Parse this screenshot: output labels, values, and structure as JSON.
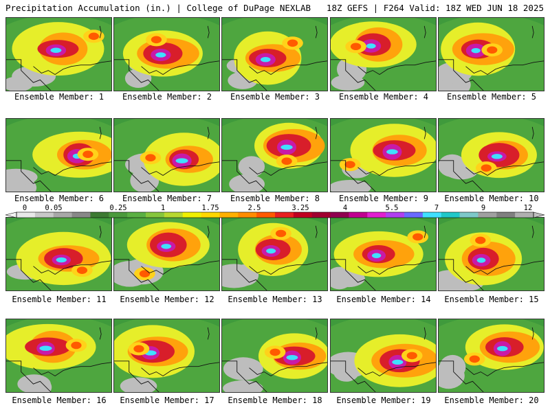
{
  "header": {
    "left": "Precipitation Accumulation (in.) | College of DuPage NEXLAB",
    "right": "18Z GEFS | F264 Valid: 18Z WED JUN 18 2025"
  },
  "panels": [
    "Ensemble Member: 1",
    "Ensemble Member: 2",
    "Ensemble Member: 3",
    "Ensemble Member: 4",
    "Ensemble Member: 5",
    "Ensemble Member: 6",
    "Ensemble Member: 7",
    "Ensemble Member: 8",
    "Ensemble Member: 9",
    "Ensemble Member: 10",
    "Ensemble Member: 11",
    "Ensemble Member: 12",
    "Ensemble Member: 13",
    "Ensemble Member: 14",
    "Ensemble Member: 15",
    "Ensemble Member: 16",
    "Ensemble Member: 17",
    "Ensemble Member: 18",
    "Ensemble Member: 19",
    "Ensemble Member: 20"
  ],
  "colorbar": {
    "labels": [
      "0",
      "0.05",
      "0.25",
      "1",
      "1.75",
      "2.5",
      "3.25",
      "4",
      "5.5",
      "7",
      "9",
      "12"
    ],
    "colors": [
      "#e8e8e8",
      "#c8c8c8",
      "#a8a8a8",
      "#888888",
      "#3c7a32",
      "#4a9a3c",
      "#5ab043",
      "#86c63c",
      "#b8d830",
      "#f0f000",
      "#ffd700",
      "#ffb000",
      "#ff8c00",
      "#ff5a00",
      "#e82020",
      "#c00020",
      "#a00030",
      "#900050",
      "#c00090",
      "#e020d0",
      "#b040f0",
      "#6a6aff",
      "#40e0ff",
      "#20c8c8",
      "#7ec8c8",
      "#a0a0a0",
      "#808080",
      "#b0b0b0"
    ]
  }
}
